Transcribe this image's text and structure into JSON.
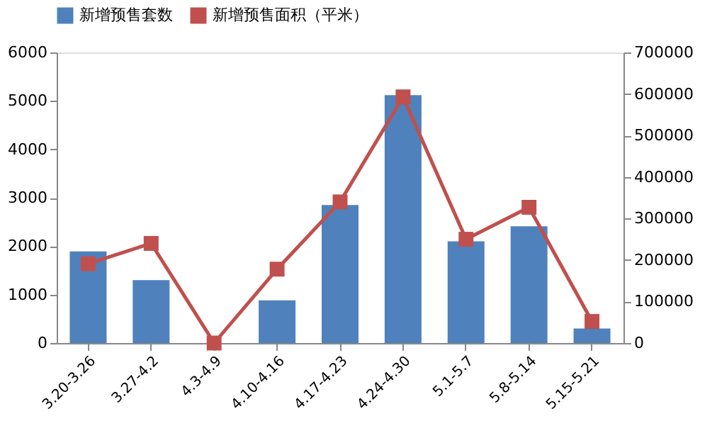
{
  "chart_data": {
    "type": "bar",
    "categories": [
      "3.20-3.26",
      "3.27-4.2",
      "4.3-4.9",
      "4.10-4.16",
      "4.17-4.23",
      "4.24-4.30",
      "5.1-5.7",
      "5.8-5.14",
      "5.15-5.21"
    ],
    "series": [
      {
        "name": "新增预售套数",
        "color": "#4f81bd",
        "values": [
          1890,
          1300,
          0,
          880,
          2850,
          5120,
          2100,
          2410,
          300
        ]
      },
      {
        "name": "新增预售面积（平米）",
        "type": "line",
        "axis": "y2",
        "color": "#c0504d",
        "marker": "square",
        "values": [
          191000,
          240000,
          0,
          178000,
          340000,
          593000,
          250000,
          327000,
          52000
        ]
      }
    ],
    "ylim": [
      0,
      6000
    ],
    "yticks": [
      0,
      1000,
      2000,
      3000,
      4000,
      5000,
      6000
    ],
    "y2lim": [
      0,
      700000
    ],
    "y2ticks": [
      0,
      100000,
      200000,
      300000,
      400000,
      500000,
      600000,
      700000
    ],
    "legend": "top",
    "grid": false
  }
}
